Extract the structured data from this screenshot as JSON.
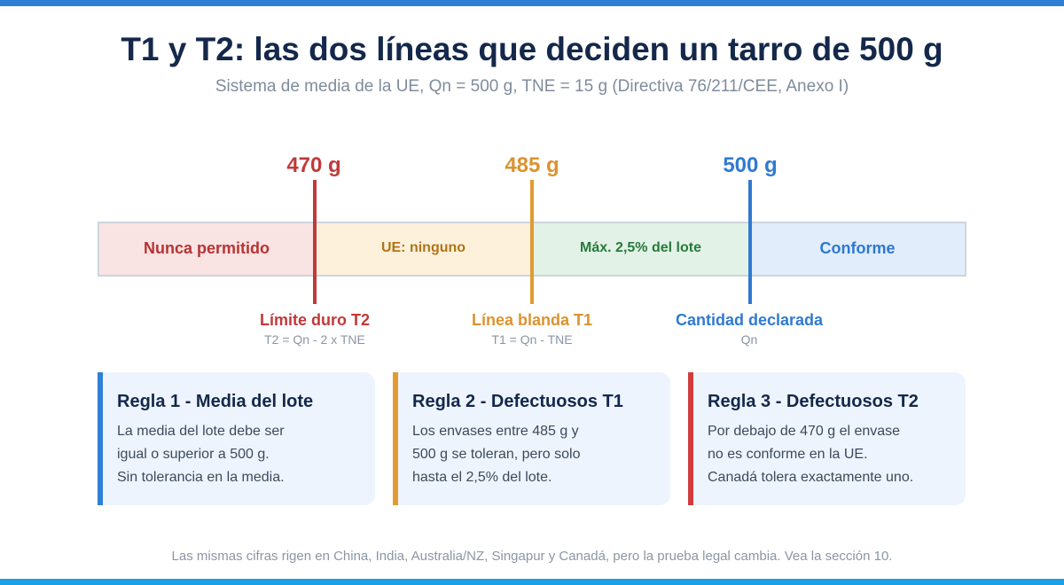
{
  "title": "T1 y T2: las dos líneas que deciden un tarro de 500 g",
  "subtitle": "Sistema de media de la UE, Qn = 500 g, TNE = 15 g (Directiva 76/211/CEE, Anexo I)",
  "zones": {
    "red": "Nunca permitido",
    "amber": "UE: ninguno",
    "green": "Máx. 2,5% del lote",
    "blue": "Conforme"
  },
  "thresholds": [
    {
      "value": "470 g",
      "label": "Límite duro T2",
      "formula": "T2 = Qn - 2 x TNE",
      "color": "#c0393a"
    },
    {
      "value": "485 g",
      "label": "Línea blanda T1",
      "formula": "T1 = Qn - TNE",
      "color": "#db9330"
    },
    {
      "value": "500 g",
      "label": "Cantidad declarada",
      "formula": "Qn",
      "color": "#2f7ad2"
    }
  ],
  "cards": [
    {
      "title": "Regla 1 - Media del lote",
      "lines": [
        "La media del lote debe ser",
        "igual o superior a 500 g.",
        "Sin tolerancia en la media."
      ],
      "accent": "#2f7fd6"
    },
    {
      "title": "Regla 2 - Defectuosos T1",
      "lines": [
        "Los envases entre 485 g y",
        "500 g se toleran, pero solo",
        "hasta el 2,5% del lote."
      ],
      "accent": "#e29a32"
    },
    {
      "title": "Regla 3 - Defectuosos T2",
      "lines": [
        "Por debajo de 470 g el envase",
        "no es conforme en la UE.",
        "Canadá tolera exactamente uno."
      ],
      "accent": "#cf3d3d"
    }
  ],
  "footnote": "Las mismas cifras rigen en China, India, Australia/NZ, Singapur y Canadá, pero la prueba legal cambia. Vea la sección 10."
}
